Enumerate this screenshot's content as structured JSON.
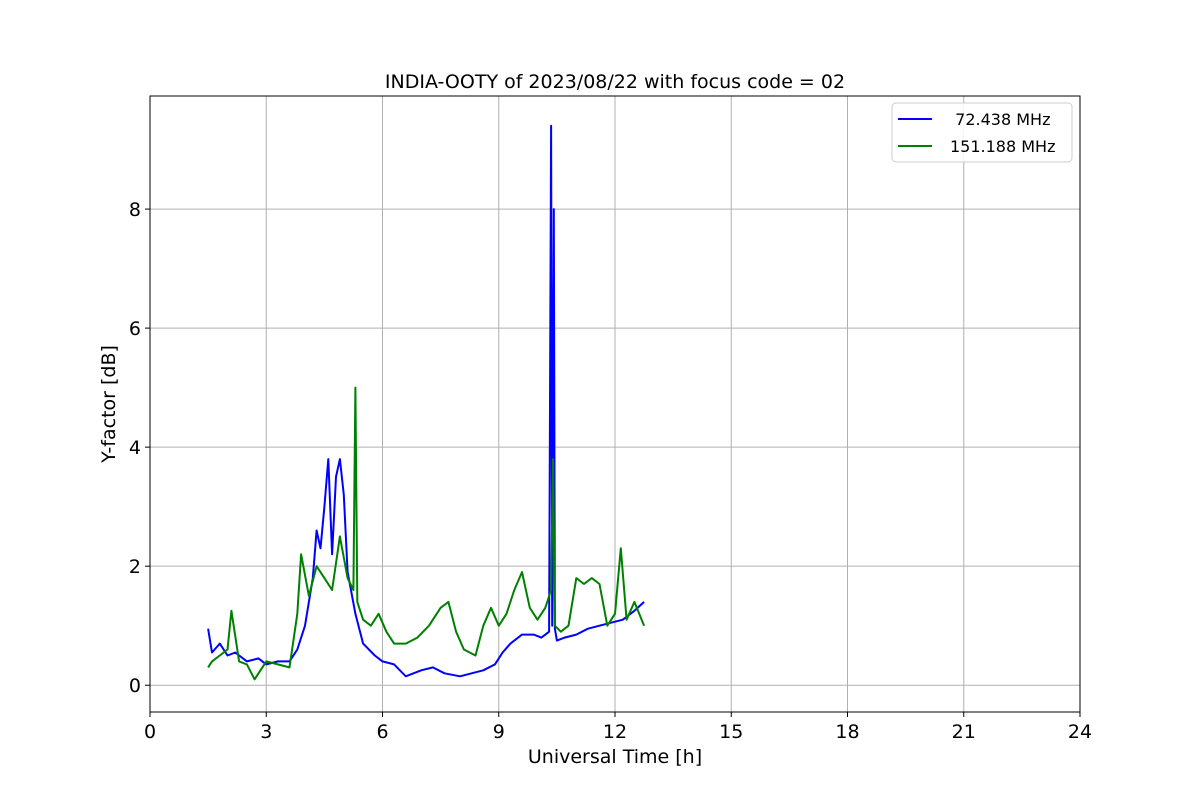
{
  "chart_data": {
    "type": "line",
    "title": "INDIA-OOTY of 2023/08/22 with focus code = 02",
    "xlabel": "Universal Time [h]",
    "ylabel": "Y-factor [dB]",
    "xlim": [
      0,
      24
    ],
    "ylim": [
      -0.45,
      9.9
    ],
    "xticks": [
      0,
      3,
      6,
      9,
      12,
      15,
      18,
      21,
      24
    ],
    "xtick_labels": [
      "0",
      "3",
      "6",
      "9",
      "12",
      "15",
      "18",
      "21",
      "24"
    ],
    "yticks": [
      0,
      2,
      4,
      6,
      8
    ],
    "ytick_labels": [
      "0",
      "2",
      "4",
      "6",
      "8"
    ],
    "grid": true,
    "legend_position": "top-right",
    "series": [
      {
        "name": "  72.438 MHz",
        "color": "#0000ff",
        "x": [
          1.5,
          1.6,
          1.8,
          2.0,
          2.2,
          2.5,
          2.8,
          3.0,
          3.3,
          3.6,
          3.8,
          4.0,
          4.2,
          4.3,
          4.4,
          4.5,
          4.6,
          4.7,
          4.8,
          4.9,
          5.0,
          5.1,
          5.3,
          5.5,
          5.8,
          6.0,
          6.3,
          6.6,
          6.8,
          7.0,
          7.3,
          7.6,
          8.0,
          8.3,
          8.6,
          8.9,
          9.1,
          9.3,
          9.6,
          9.9,
          10.1,
          10.3,
          10.35,
          10.38,
          10.42,
          10.45,
          10.5,
          10.7,
          11.0,
          11.3,
          11.6,
          11.9,
          12.2,
          12.5,
          12.75
        ],
        "y": [
          0.95,
          0.55,
          0.7,
          0.5,
          0.55,
          0.4,
          0.45,
          0.35,
          0.4,
          0.4,
          0.6,
          1.0,
          1.8,
          2.6,
          2.3,
          3.0,
          3.8,
          2.2,
          3.5,
          3.8,
          3.2,
          1.9,
          1.2,
          0.7,
          0.5,
          0.4,
          0.35,
          0.15,
          0.2,
          0.25,
          0.3,
          0.2,
          0.15,
          0.2,
          0.25,
          0.35,
          0.55,
          0.7,
          0.85,
          0.85,
          0.8,
          0.9,
          9.4,
          1.0,
          8.0,
          0.95,
          0.75,
          0.8,
          0.85,
          0.95,
          1.0,
          1.05,
          1.1,
          1.25,
          1.4
        ]
      },
      {
        "name": "151.188 MHz",
        "color": "#008000",
        "x": [
          1.5,
          1.6,
          1.8,
          2.0,
          2.1,
          2.3,
          2.5,
          2.7,
          3.0,
          3.3,
          3.6,
          3.8,
          3.9,
          4.1,
          4.3,
          4.5,
          4.7,
          4.9,
          5.1,
          5.25,
          5.3,
          5.35,
          5.5,
          5.7,
          5.9,
          6.1,
          6.3,
          6.6,
          6.9,
          7.2,
          7.5,
          7.7,
          7.9,
          8.1,
          8.4,
          8.6,
          8.8,
          9.0,
          9.2,
          9.4,
          9.6,
          9.8,
          10.0,
          10.2,
          10.35,
          10.4,
          10.45,
          10.6,
          10.8,
          11.0,
          11.2,
          11.4,
          11.6,
          11.8,
          12.0,
          12.15,
          12.3,
          12.5,
          12.75
        ],
        "y": [
          0.3,
          0.4,
          0.5,
          0.6,
          1.25,
          0.4,
          0.35,
          0.1,
          0.4,
          0.35,
          0.3,
          1.2,
          2.2,
          1.5,
          2.0,
          1.8,
          1.6,
          2.5,
          1.8,
          1.6,
          5.0,
          1.4,
          1.1,
          1.0,
          1.2,
          0.9,
          0.7,
          0.7,
          0.8,
          1.0,
          1.3,
          1.4,
          0.9,
          0.6,
          0.5,
          1.0,
          1.3,
          1.0,
          1.2,
          1.6,
          1.9,
          1.3,
          1.1,
          1.3,
          1.6,
          3.8,
          1.0,
          0.9,
          1.0,
          1.8,
          1.7,
          1.8,
          1.7,
          1.0,
          1.2,
          2.3,
          1.1,
          1.4,
          1.0
        ]
      }
    ]
  }
}
